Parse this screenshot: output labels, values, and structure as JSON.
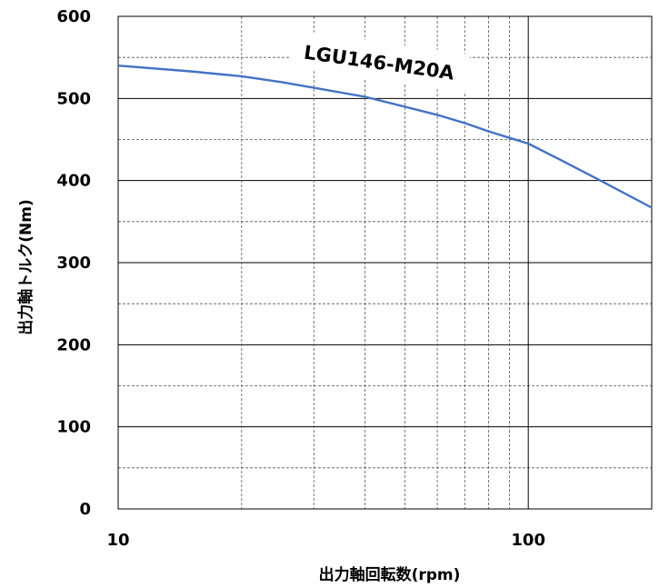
{
  "chart_data": {
    "type": "line",
    "x_scale": "log",
    "xlim": [
      10,
      200
    ],
    "ylim": [
      0,
      600
    ],
    "y_ticks": [
      "0",
      "100",
      "200",
      "300",
      "400",
      "500",
      "600"
    ],
    "x_ticks": [
      "10",
      "100"
    ],
    "y_major_step": 100,
    "y_minor_step": 50,
    "grid": true,
    "xlabel": "出力軸回転数(rpm)",
    "ylabel": "出力軸トルク(Nm)",
    "annotation": "LGU146-M20A",
    "series": [
      {
        "name": "LGU146-M20A",
        "color": "#4472c4",
        "x": [
          10,
          15,
          20,
          25,
          30,
          40,
          50,
          60,
          70,
          80,
          90,
          100,
          120,
          150,
          200
        ],
        "y": [
          540,
          533,
          527,
          520,
          513,
          502,
          490,
          480,
          470,
          460,
          452,
          445,
          425,
          400,
          367
        ]
      }
    ]
  }
}
